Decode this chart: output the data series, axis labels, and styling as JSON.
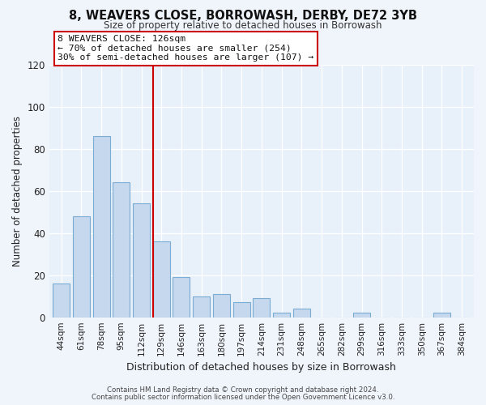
{
  "title": "8, WEAVERS CLOSE, BORROWASH, DERBY, DE72 3YB",
  "subtitle": "Size of property relative to detached houses in Borrowash",
  "xlabel": "Distribution of detached houses by size in Borrowash",
  "ylabel": "Number of detached properties",
  "categories": [
    "44sqm",
    "61sqm",
    "78sqm",
    "95sqm",
    "112sqm",
    "129sqm",
    "146sqm",
    "163sqm",
    "180sqm",
    "197sqm",
    "214sqm",
    "231sqm",
    "248sqm",
    "265sqm",
    "282sqm",
    "299sqm",
    "316sqm",
    "333sqm",
    "350sqm",
    "367sqm",
    "384sqm"
  ],
  "values": [
    16,
    48,
    86,
    64,
    54,
    36,
    19,
    10,
    11,
    7,
    9,
    2,
    4,
    0,
    0,
    2,
    0,
    0,
    0,
    2,
    0
  ],
  "bar_color": "#c5d8ee",
  "bar_edge_color": "#7aacd4",
  "highlight_index": 5,
  "highlight_line_color": "#cc0000",
  "ylim": [
    0,
    120
  ],
  "yticks": [
    0,
    20,
    40,
    60,
    80,
    100,
    120
  ],
  "annotation_title": "8 WEAVERS CLOSE: 126sqm",
  "annotation_line1": "← 70% of detached houses are smaller (254)",
  "annotation_line2": "30% of semi-detached houses are larger (107) →",
  "annotation_box_color": "#ffffff",
  "annotation_box_edge": "#cc0000",
  "footer_line1": "Contains HM Land Registry data © Crown copyright and database right 2024.",
  "footer_line2": "Contains public sector information licensed under the Open Government Licence v3.0.",
  "background_color": "#f0f5fc",
  "plot_background": "#e8f0fa",
  "grid_color": "#ffffff"
}
